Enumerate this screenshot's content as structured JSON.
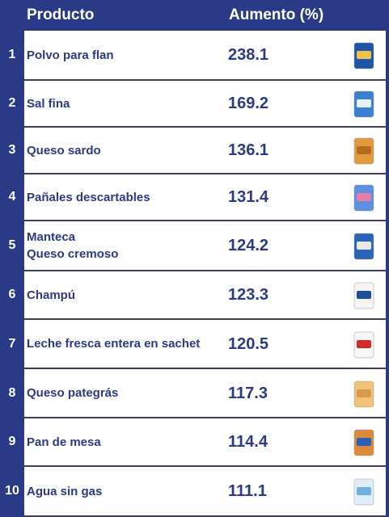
{
  "table": {
    "header": [
      "Producto",
      "Aumento (%)"
    ],
    "rows": [
      {
        "rank": 1,
        "product": [
          "Polvo para flan"
        ],
        "value": 238.1
      },
      {
        "rank": 2,
        "product": [
          "Sal fina"
        ],
        "value": 169.2
      },
      {
        "rank": 3,
        "product": [
          "Queso sardo"
        ],
        "value": 136.1
      },
      {
        "rank": 4,
        "product": [
          "Pañales descartables"
        ],
        "value": 131.4
      },
      {
        "rank": 5,
        "product": [
          "Manteca",
          "Queso cremoso"
        ],
        "value": 124.2
      },
      {
        "rank": 6,
        "product": [
          "Champú"
        ],
        "value": 123.3
      },
      {
        "rank": 7,
        "product": [
          "Leche fresca entera en sachet"
        ],
        "value": 120.5
      },
      {
        "rank": 8,
        "product": [
          "Queso pategrás"
        ],
        "value": 117.3
      },
      {
        "rank": 9,
        "product": [
          "Pan de mesa"
        ],
        "value": 114.4
      },
      {
        "rank": 10,
        "product": [
          "Agua sin gas"
        ],
        "value": 111.1
      }
    ]
  }
}
